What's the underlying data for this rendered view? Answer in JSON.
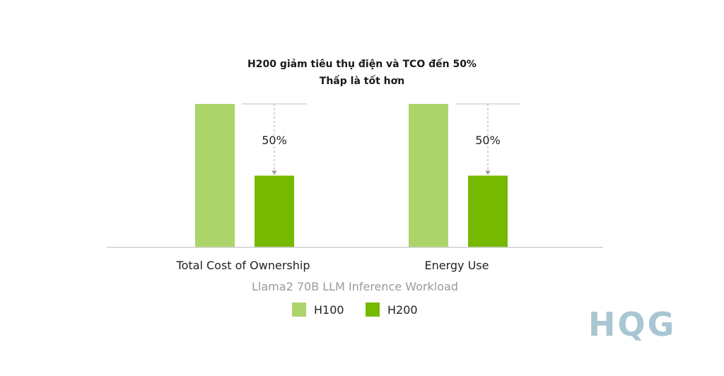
{
  "chart_data": {
    "type": "bar",
    "title": "H200 giảm tiêu thụ điện và TCO đến 50%",
    "subtitle": "Thấp là tốt hơn",
    "categories": [
      "Total Cost of Ownership",
      "Energy Use"
    ],
    "xlabel": "Llama2 70B LLM Inference Workload",
    "ylabel": "",
    "ylim": [
      0,
      1
    ],
    "series": [
      {
        "name": "H100",
        "values": [
          1.0,
          1.0
        ],
        "color": "#acd46a"
      },
      {
        "name": "H200",
        "values": [
          0.5,
          0.5
        ],
        "color": "#76b900"
      }
    ],
    "annotations": [
      "50%",
      "50%"
    ],
    "legend": "bottom-center",
    "grid": false
  },
  "watermark": {
    "text": "HQG"
  }
}
